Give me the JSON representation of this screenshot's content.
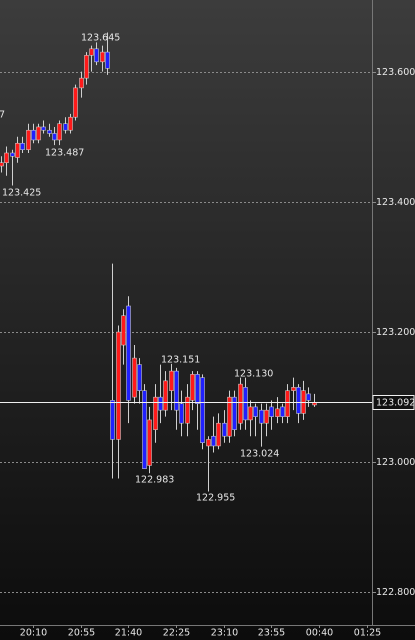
{
  "chart_data": {
    "type": "candlestick",
    "up_color": "#ff1a1a",
    "down_color": "#2020ff",
    "wick_color": "#d0d0d0",
    "grid": true,
    "open": [
      123.455,
      123.46,
      123.475,
      123.468,
      123.49,
      123.48,
      123.51,
      123.495,
      123.515,
      123.51,
      123.505,
      123.495,
      123.52,
      123.51,
      123.53,
      123.575,
      123.59,
      123.625,
      123.635,
      123.615,
      123.63,
      123.095,
      123.035,
      123.18,
      123.24,
      123.1,
      123.15,
      123.11,
      122.995,
      123.05,
      123.1,
      123.08,
      123.11,
      123.14,
      123.09,
      123.06,
      123.095,
      123.135,
      123.13,
      123.025,
      123.04,
      123.025,
      123.06,
      123.04,
      123.1,
      123.06,
      123.115,
      123.065,
      123.085,
      123.08,
      123.06,
      123.085,
      123.07,
      123.085,
      123.07,
      123.11,
      123.115,
      123.075,
      123.105,
      123.088
    ],
    "high": [
      123.47,
      123.485,
      123.48,
      123.5,
      123.5,
      123.52,
      123.52,
      123.52,
      123.525,
      123.52,
      123.515,
      123.525,
      123.53,
      123.535,
      123.58,
      123.6,
      123.63,
      123.64,
      123.645,
      123.64,
      123.66,
      123.305,
      123.21,
      123.235,
      123.255,
      123.18,
      123.16,
      123.12,
      123.085,
      123.12,
      123.15,
      123.14,
      123.151,
      123.145,
      123.11,
      123.12,
      123.14,
      123.14,
      123.135,
      123.04,
      123.07,
      123.075,
      123.08,
      123.11,
      123.11,
      123.13,
      123.13,
      123.095,
      123.09,
      123.09,
      123.09,
      123.095,
      123.1,
      123.09,
      123.12,
      123.13,
      123.12,
      123.125,
      123.115,
      123.105
    ],
    "low": [
      123.445,
      123.44,
      123.425,
      123.46,
      123.475,
      123.475,
      123.49,
      123.49,
      123.505,
      123.5,
      123.487,
      123.487,
      123.505,
      123.505,
      123.525,
      123.56,
      123.58,
      123.6,
      123.61,
      123.6,
      123.595,
      122.975,
      122.975,
      123.15,
      123.06,
      123.09,
      123.09,
      122.99,
      122.983,
      123.03,
      123.06,
      123.07,
      123.08,
      123.05,
      123.04,
      123.04,
      123.08,
      123.05,
      123.02,
      122.955,
      123.015,
      123.02,
      123.03,
      123.03,
      123.04,
      123.05,
      123.05,
      123.04,
      123.04,
      123.024,
      123.04,
      123.05,
      123.06,
      123.06,
      123.06,
      123.08,
      123.06,
      123.065,
      123.085,
      123.085
    ],
    "close": [
      123.46,
      123.475,
      123.47,
      123.49,
      123.48,
      123.51,
      123.495,
      123.515,
      123.51,
      123.505,
      123.495,
      123.52,
      123.51,
      123.53,
      123.575,
      123.59,
      123.625,
      123.635,
      123.615,
      123.63,
      123.605,
      123.035,
      123.2,
      123.225,
      123.095,
      123.16,
      123.11,
      122.99,
      123.065,
      123.1,
      123.08,
      123.125,
      123.14,
      123.08,
      123.06,
      123.1,
      123.135,
      123.09,
      123.03,
      123.035,
      123.025,
      123.06,
      123.04,
      123.1,
      123.05,
      123.12,
      123.065,
      123.085,
      123.07,
      123.06,
      123.08,
      123.07,
      123.082,
      123.07,
      123.11,
      123.115,
      123.075,
      123.11,
      123.095,
      123.092
    ],
    "xlim": [
      -0.2,
      70
    ],
    "xticks": [
      {
        "value": 6,
        "label": "20:10"
      },
      {
        "value": 15,
        "label": "20:55"
      },
      {
        "value": 24,
        "label": "21:40"
      },
      {
        "value": 33,
        "label": "22:25"
      },
      {
        "value": 42,
        "label": "23:10"
      },
      {
        "value": 51,
        "label": "23:55"
      },
      {
        "value": 60,
        "label": "00:40"
      },
      {
        "value": 69,
        "label": "01:25"
      }
    ],
    "ylim": [
      122.75,
      123.71
    ],
    "yticks": [
      {
        "value": 122.8,
        "label": "122.800"
      },
      {
        "value": 123.0,
        "label": "123.000"
      },
      {
        "value": 123.2,
        "label": "123.200"
      },
      {
        "value": 123.4,
        "label": "123.400"
      },
      {
        "value": 123.6,
        "label": "123.600"
      }
    ],
    "last_price": {
      "value": 123.092,
      "label": "123.092"
    },
    "annotations": [
      "7",
      "123.645",
      "123.487",
      "123.425",
      "123.151",
      "123.130",
      "123.024",
      "122.983",
      "122.955"
    ]
  }
}
